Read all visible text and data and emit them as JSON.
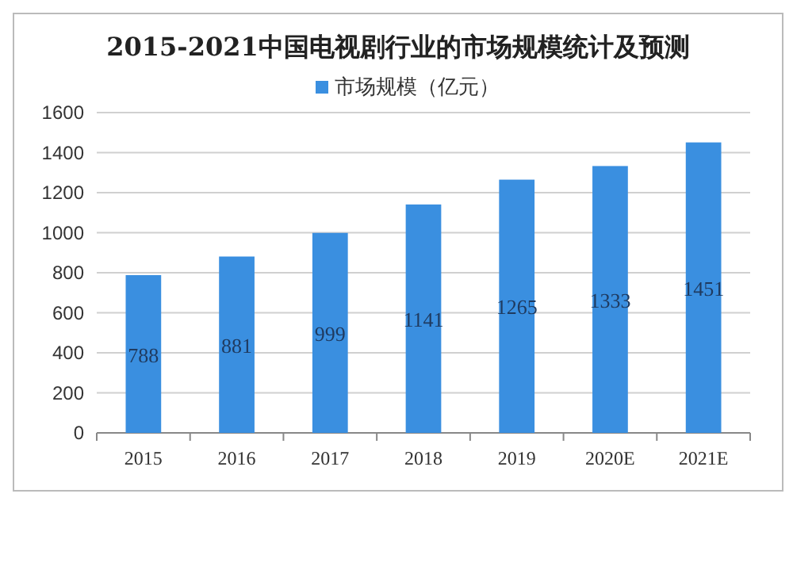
{
  "chart_data": {
    "type": "bar",
    "title": "2015-2021中国电视剧行业的市场规模统计及预测",
    "categories": [
      "2015",
      "2016",
      "2017",
      "2018",
      "2019",
      "2020E",
      "2021E"
    ],
    "series": [
      {
        "name": "市场规模（亿元）",
        "color": "#3a8fe0",
        "values": [
          788,
          881,
          999,
          1141,
          1265,
          1333,
          1451
        ]
      }
    ],
    "ylim": [
      0,
      1600
    ],
    "yticks": [
      0,
      200,
      400,
      600,
      800,
      1000,
      1200,
      1400,
      1600
    ],
    "grid": "y",
    "legend": "top",
    "data_labels": true
  }
}
